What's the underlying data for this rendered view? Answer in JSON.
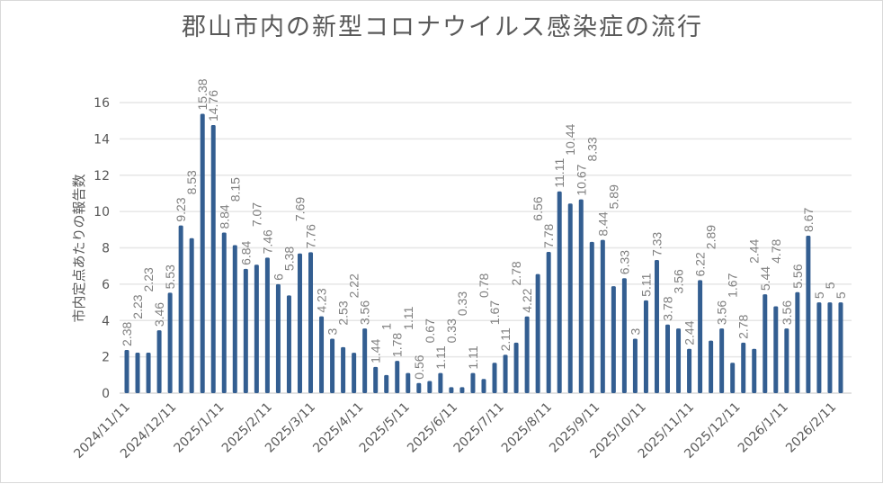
{
  "chart_data": {
    "type": "bar",
    "title": "郡山市内の新型コロナウイルス感染症の流行",
    "ylabel": "市内定点あたりの報告数",
    "xlabel": "",
    "ylim": [
      0,
      16
    ],
    "yticks": [
      0,
      2,
      4,
      6,
      8,
      10,
      12,
      14,
      16
    ],
    "xtick_labels": [
      "2024/11/11",
      "2024/12/11",
      "2025/1/11",
      "2025/2/11",
      "2025/3/11",
      "2025/4/11",
      "2025/5/11",
      "2025/6/11",
      "2025/7/11",
      "2025/8/11",
      "2025/9/11",
      "2025/10/11",
      "2025/11/11",
      "2025/12/11",
      "2026/1/11",
      "2026/2/11"
    ],
    "grid": true,
    "legend": "none",
    "bar_color": "#335e91",
    "values": [
      2.38,
      2.23,
      2.23,
      3.46,
      5.53,
      9.23,
      8.53,
      15.38,
      14.76,
      8.84,
      8.15,
      6.84,
      7.07,
      7.46,
      6,
      5.38,
      7.69,
      7.76,
      4.23,
      3,
      2.53,
      2.22,
      3.56,
      1.44,
      1,
      1.78,
      1.11,
      0.56,
      0.67,
      1.11,
      0.33,
      0.33,
      1.11,
      0.78,
      1.67,
      2.11,
      2.78,
      4.22,
      6.56,
      7.78,
      11.11,
      10.44,
      10.67,
      8.33,
      8.44,
      5.89,
      6.33,
      3,
      5.11,
      7.33,
      3.78,
      3.56,
      2.44,
      6.22,
      2.89,
      3.56,
      1.67,
      2.78,
      2.44,
      5.44,
      4.78,
      3.56,
      5.56,
      8.67,
      5,
      5,
      5
    ]
  }
}
